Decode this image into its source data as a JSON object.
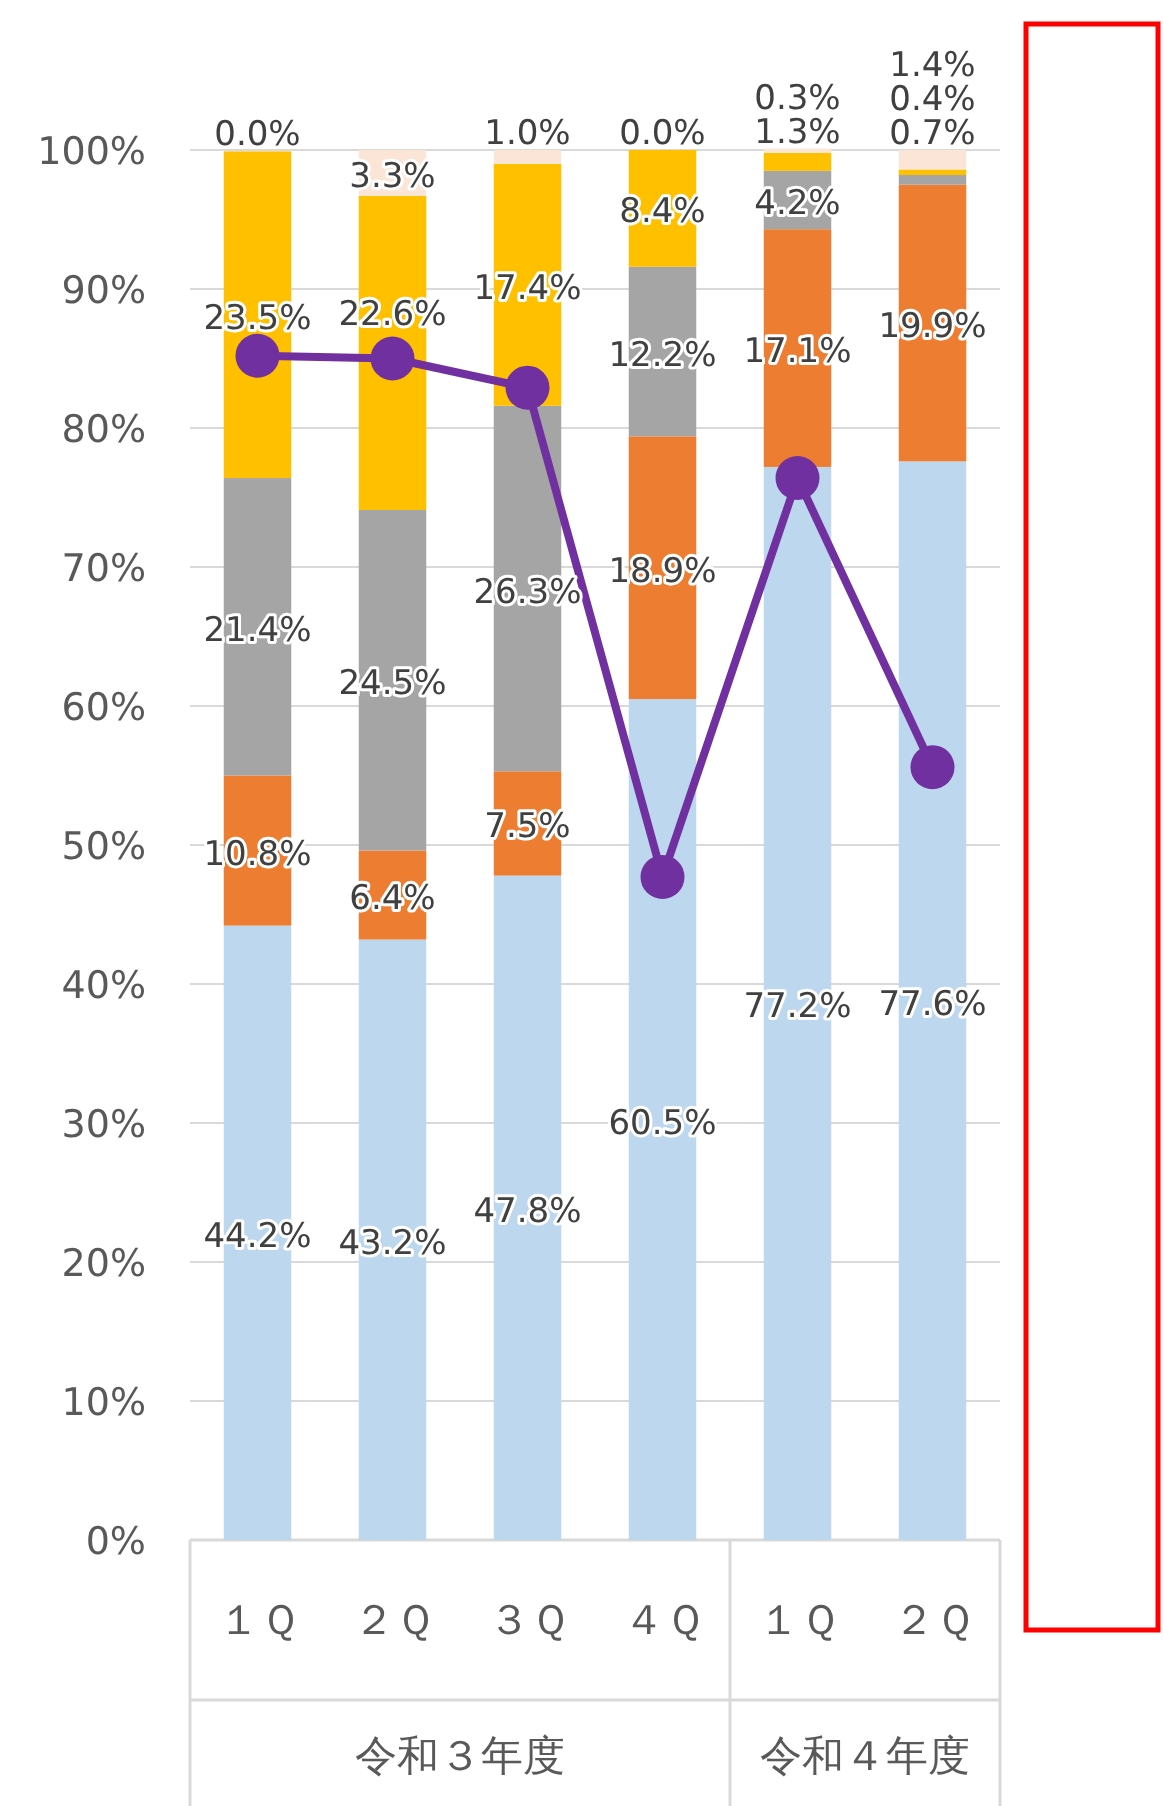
{
  "chart_data": {
    "type": "bar",
    "stacked": true,
    "categories": [
      "１Ｑ",
      "２Ｑ",
      "３Ｑ",
      "４Ｑ",
      "１Ｑ",
      "２Ｑ"
    ],
    "annotations": [
      "令和３年度",
      "令和４年度"
    ],
    "ylim": [
      0,
      100
    ],
    "yticks": [
      {
        "value": 0,
        "label": "0%"
      },
      {
        "value": 10,
        "label": "10%"
      },
      {
        "value": 20,
        "label": "20%"
      },
      {
        "value": 30,
        "label": "30%"
      },
      {
        "value": 40,
        "label": "40%"
      },
      {
        "value": 50,
        "label": "50%"
      },
      {
        "value": 60,
        "label": "60%"
      },
      {
        "value": 70,
        "label": "70%"
      },
      {
        "value": 80,
        "label": "80%"
      },
      {
        "value": 90,
        "label": "90%"
      },
      {
        "value": 100,
        "label": "100%"
      }
    ],
    "grid": "y",
    "series": [
      {
        "color": "#bdd7ee",
        "values": [
          44.2,
          43.2,
          47.8,
          60.5,
          77.2,
          77.6
        ],
        "value_labels": [
          "44.2%",
          "43.2%",
          "47.8%",
          "60.5%",
          "77.2%",
          "77.6%"
        ]
      },
      {
        "color": "#ed7d31",
        "values": [
          10.8,
          6.4,
          7.5,
          18.9,
          17.1,
          19.9
        ],
        "value_labels": [
          "10.8%",
          "6.4%",
          "7.5%",
          "18.9%",
          "17.1%",
          "19.9%"
        ]
      },
      {
        "color": "#a5a5a5",
        "values": [
          21.4,
          24.5,
          26.3,
          12.2,
          4.2,
          0.7
        ],
        "value_labels": [
          "21.4%",
          "24.5%",
          "26.3%",
          "12.2%",
          "4.2%",
          "0.7%"
        ]
      },
      {
        "color": "#ffc000",
        "values": [
          23.5,
          22.6,
          17.4,
          8.4,
          1.3,
          0.4
        ],
        "value_labels": [
          "23.5%",
          "22.6%",
          "17.4%",
          "8.4%",
          "1.3%",
          "0.4%"
        ]
      },
      {
        "color": "#fbe5d6",
        "values": [
          0.0,
          3.3,
          1.0,
          0.0,
          0.3,
          1.4
        ],
        "value_labels": [
          "0.0%",
          "3.3%",
          "1.0%",
          "0.0%",
          "0.3%",
          "1.4%"
        ]
      },
      {
        "type": "line",
        "color": "#7030a0",
        "marker": "circle",
        "line_style": "solid",
        "values": [
          85.2,
          85.0,
          82.9,
          47.7,
          76.4,
          55.6
        ]
      }
    ]
  }
}
